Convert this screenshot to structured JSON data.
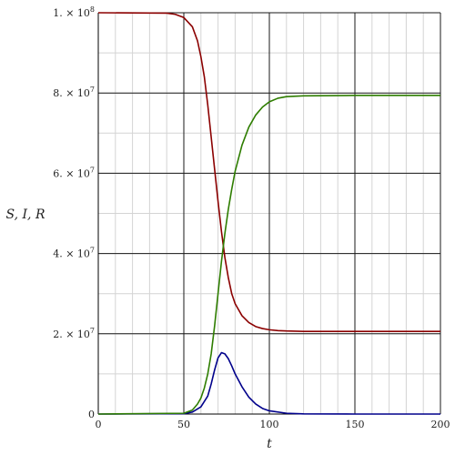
{
  "chart_data": {
    "type": "line",
    "xlabel": "t",
    "ylabel": "S, I, R",
    "xlim": [
      0,
      200
    ],
    "ylim": [
      0,
      100000000
    ],
    "grid": true,
    "x_ticks": [
      0,
      50,
      100,
      150,
      200
    ],
    "x_tick_labels": [
      "0",
      "50",
      "100",
      "150",
      "200"
    ],
    "y_ticks": [
      0,
      20000000,
      40000000,
      60000000,
      80000000,
      100000000
    ],
    "y_tick_labels": [
      {
        "mantissa": "0",
        "exp": ""
      },
      {
        "mantissa": "2. × 10",
        "exp": "7"
      },
      {
        "mantissa": "4. × 10",
        "exp": "7"
      },
      {
        "mantissa": "6. × 10",
        "exp": "7"
      },
      {
        "mantissa": "8. × 10",
        "exp": "7"
      },
      {
        "mantissa": "1. × 10",
        "exp": "8"
      }
    ],
    "series": [
      {
        "color": "#8b0000",
        "x": [
          0,
          40,
          45,
          50,
          55,
          58,
          60,
          62,
          64,
          66,
          68,
          70,
          72,
          74,
          76,
          78,
          80,
          84,
          88,
          92,
          96,
          100,
          105,
          110,
          120,
          150,
          200
        ],
        "y": [
          100000000,
          99900000,
          99600000,
          98800000,
          96500000,
          93000000,
          89000000,
          84000000,
          77000000,
          69000000,
          61000000,
          53000000,
          45500000,
          39000000,
          34000000,
          30000000,
          27500000,
          24500000,
          22800000,
          21800000,
          21300000,
          21000000,
          20800000,
          20700000,
          20600000,
          20600000,
          20600000
        ]
      },
      {
        "color": "#00008b",
        "x": [
          0,
          50,
          55,
          60,
          64,
          66,
          68,
          70,
          72,
          74,
          76,
          78,
          80,
          84,
          88,
          92,
          96,
          100,
          110,
          120,
          150,
          200
        ],
        "y": [
          0,
          100000,
          500000,
          1800000,
          4500000,
          7500000,
          11000000,
          14000000,
          15300000,
          15000000,
          13800000,
          12000000,
          10000000,
          6800000,
          4200000,
          2500000,
          1400000,
          800000,
          200000,
          50000,
          0,
          0
        ]
      },
      {
        "color": "#2e7d00",
        "x": [
          0,
          50,
          55,
          58,
          60,
          62,
          64,
          66,
          68,
          70,
          72,
          74,
          76,
          78,
          80,
          84,
          88,
          92,
          96,
          100,
          105,
          110,
          120,
          150,
          200
        ],
        "y": [
          0,
          200000,
          1000000,
          2500000,
          4000000,
          6500000,
          10000000,
          15000000,
          22000000,
          30000000,
          38000000,
          45000000,
          51000000,
          56000000,
          60500000,
          67000000,
          71500000,
          74500000,
          76500000,
          77800000,
          78700000,
          79100000,
          79300000,
          79400000,
          79400000
        ]
      }
    ]
  }
}
